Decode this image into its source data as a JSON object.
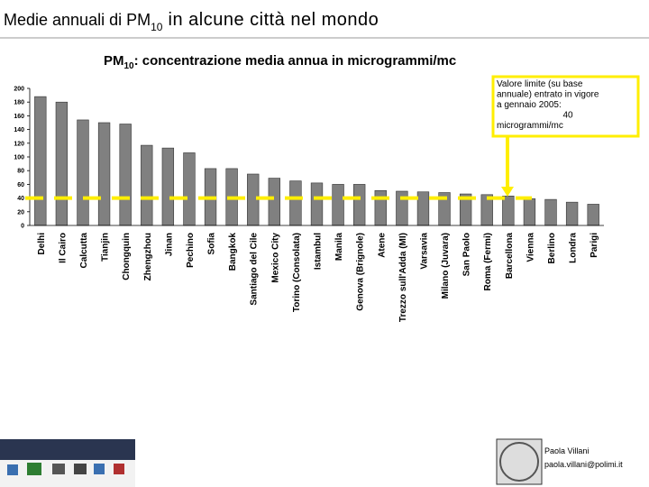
{
  "header": {
    "title_main": "Medie annuali di PM",
    "title_sub": "10",
    "title_rest": " in alcune città nel mondo"
  },
  "chart_data": {
    "type": "bar",
    "title_main": "PM",
    "title_sub": "10",
    "title_rest": ": concentrazione media annua in microgrammi/mc",
    "categories": [
      "Delhi",
      "Il Cairo",
      "Calcutta",
      "Tianjin",
      "Chongquin",
      "Zhengzhou",
      "Jinan",
      "Pechino",
      "Sofia",
      "Bangkok",
      "Santiago del Cile",
      "Mexico City",
      "Torino (Consolata)",
      "Istambul",
      "Manila",
      "Genova (Brignole)",
      "Atene",
      "Trezzo sull'Adda (MI)",
      "Varsavia",
      "Milano (Juvara)",
      "San Paolo",
      "Roma (Fermi)",
      "Barcellona",
      "Vienna",
      "Berlino",
      "Londra",
      "Parigi"
    ],
    "values": [
      188,
      180,
      154,
      150,
      148,
      117,
      113,
      106,
      83,
      83,
      75,
      69,
      65,
      62,
      60,
      60,
      51,
      50,
      49,
      48,
      46,
      45,
      43,
      39,
      38,
      34,
      31
    ],
    "color": "#808080",
    "ylim": [
      0,
      200
    ],
    "yticks": [
      0,
      20,
      40,
      60,
      80,
      100,
      120,
      140,
      160,
      180,
      200
    ],
    "limit": 40,
    "limit_color": "#ffee00",
    "annotation": [
      "Valore limite (su base",
      "annuale) entrato in vigore",
      "a gennaio 2005:",
      "40",
      "microgrammi/mc"
    ]
  },
  "footer": {
    "author": "Paola Villani",
    "email": "paola.villani@polimi.it"
  }
}
